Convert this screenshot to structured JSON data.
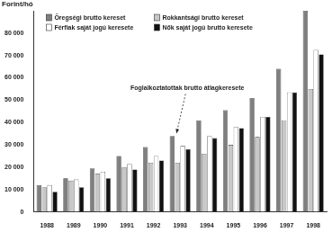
{
  "chart_data": {
    "type": "bar",
    "y_label": "Forint/hó",
    "annotation": "Foglalkoztatottak brutto átlagkeresete",
    "categories": [
      "1988",
      "1989",
      "1990",
      "1991",
      "1992",
      "1993",
      "1994",
      "1995",
      "1996",
      "1997",
      "1998"
    ],
    "series": [
      {
        "name": "Öregségi brutto kereset",
        "color": "#7f7f7f",
        "values": [
          12000,
          15000,
          19500,
          25000,
          29000,
          34000,
          41000,
          45500,
          51000,
          64000,
          90000
        ]
      },
      {
        "name": "Rokkantsági brutto kereset",
        "color": "#c8c8c8",
        "values": [
          11000,
          14000,
          17000,
          20000,
          22000,
          22000,
          26000,
          30000,
          33500,
          41000,
          55000
        ]
      },
      {
        "name": "Férfiak saját jogú keresete",
        "color": "#ffffff",
        "values": [
          12000,
          14500,
          18000,
          21500,
          25000,
          29500,
          34000,
          38000,
          42500,
          53500,
          72500
        ]
      },
      {
        "name": "Nők saját jogú brutto keresete",
        "color": "#111111",
        "values": [
          9000,
          11000,
          15000,
          19000,
          23000,
          28000,
          33000,
          37500,
          42500,
          53500,
          70500
        ]
      }
    ],
    "ylim": [
      0,
      90000
    ],
    "yticks": [
      0,
      {
        "value": 10000,
        "label": "10 000"
      },
      {
        "value": 20000,
        "label": "20 000"
      },
      {
        "value": 30000,
        "label": "30 000"
      },
      {
        "value": 40000,
        "label": "40 000"
      },
      {
        "value": 50000,
        "label": "50 000"
      },
      {
        "value": 60000,
        "label": "60 000"
      },
      {
        "value": 70000,
        "label": "70 000"
      },
      {
        "value": 80000,
        "label": "80 000"
      }
    ],
    "grid": false,
    "legend": "top-left"
  }
}
